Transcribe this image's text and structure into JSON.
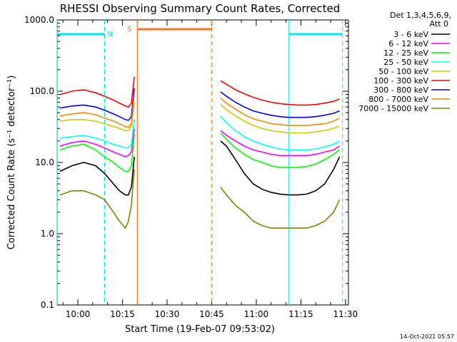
{
  "chart_data": {
    "type": "line",
    "title": "RHESSI Observing Summary Count Rates, Corrected",
    "xlabel": "Start Time (19-Feb-07 09:53:02)",
    "ylabel": "Corrected Count Rate (s⁻¹ detector⁻¹)",
    "yscale": "log",
    "ylim": [
      0.1,
      1000
    ],
    "xlim": [
      "09:53:02",
      "11:31:00"
    ],
    "x_ticks": [
      "10:00",
      "10:15",
      "10:30",
      "10:45",
      "11:00",
      "11:15",
      "11:30"
    ],
    "y_ticks": [
      "0.1",
      "1.0",
      "10.0",
      "100.0",
      "1000.0"
    ],
    "legend_title": "Det 1,3,4,5,6,9,",
    "legend_subtitle": "Att 0",
    "legend_position": "right",
    "footer_date": "14-Oct-2021 05:57",
    "night_label": "N",
    "saa_label": "S",
    "series": [
      {
        "name": "3 - 6 keV",
        "color": "#000000",
        "x": [
          "09:54",
          "09:58",
          "10:02",
          "10:06",
          "10:09",
          "10:12",
          "10:14",
          "10:16",
          "10:17",
          "10:18",
          "10:19"
        ],
        "values": [
          7.5,
          9.0,
          10.0,
          9.0,
          7.0,
          5.0,
          4.0,
          3.5,
          3.5,
          4.5,
          12
        ],
        "x2": [
          "10:48",
          "10:50",
          "10:53",
          "10:56",
          "10:59",
          "11:02",
          "11:05",
          "11:08",
          "11:11",
          "11:14",
          "11:17",
          "11:20",
          "11:23",
          "11:26",
          "11:28"
        ],
        "values2": [
          20,
          17,
          11,
          7.0,
          5.0,
          4.2,
          3.8,
          3.6,
          3.5,
          3.5,
          3.6,
          4.0,
          5.0,
          8.0,
          12
        ]
      },
      {
        "name": "6 - 12 keV",
        "color": "#ff00ff",
        "x": [
          "09:54",
          "09:58",
          "10:02",
          "10:06",
          "10:09",
          "10:12",
          "10:14",
          "10:16",
          "10:17",
          "10:18",
          "10:19"
        ],
        "values": [
          17,
          19,
          20,
          18,
          16,
          14,
          13,
          12,
          12.5,
          14,
          30
        ],
        "x2": [
          "10:48",
          "10:50",
          "10:53",
          "10:56",
          "10:59",
          "11:02",
          "11:05",
          "11:08",
          "11:11",
          "11:14",
          "11:17",
          "11:20",
          "11:23",
          "11:26",
          "11:28"
        ],
        "values2": [
          28,
          24,
          20,
          17,
          15,
          14,
          13,
          12.5,
          12.5,
          12.5,
          12.5,
          13,
          14,
          15,
          17
        ]
      },
      {
        "name": "12 - 25 keV",
        "color": "#00ff00",
        "x": [
          "09:54",
          "09:58",
          "10:02",
          "10:06",
          "10:09",
          "10:12",
          "10:14",
          "10:16",
          "10:17",
          "10:18",
          "10:19"
        ],
        "values": [
          15,
          17,
          18,
          15,
          12,
          10,
          8.5,
          7.5,
          7.5,
          9.0,
          25
        ],
        "x2": [
          "10:48",
          "10:50",
          "10:53",
          "10:56",
          "10:59",
          "11:02",
          "11:05",
          "11:08",
          "11:11",
          "11:14",
          "11:17",
          "11:20",
          "11:23",
          "11:26",
          "11:28"
        ],
        "values2": [
          26,
          21,
          16,
          13,
          11,
          10,
          9.0,
          8.5,
          8.5,
          8.5,
          8.8,
          9.5,
          11,
          13,
          15
        ]
      },
      {
        "name": "25 - 50 keV",
        "color": "#00ffff",
        "x": [
          "09:54",
          "09:58",
          "10:02",
          "10:06",
          "10:09",
          "10:12",
          "10:14",
          "10:16",
          "10:17",
          "10:18",
          "10:19"
        ],
        "values": [
          22,
          23,
          24,
          22,
          20,
          18,
          17,
          16,
          16,
          18,
          40
        ],
        "x2": [
          "10:48",
          "10:50",
          "10:53",
          "10:56",
          "10:59",
          "11:02",
          "11:05",
          "11:08",
          "11:11",
          "11:14",
          "11:17",
          "11:20",
          "11:23",
          "11:26",
          "11:28"
        ],
        "values2": [
          45,
          36,
          28,
          23,
          20,
          18,
          16.5,
          15.5,
          15,
          15,
          15,
          15.5,
          16.5,
          18,
          20
        ]
      },
      {
        "name": "50 - 100 keV",
        "color": "#cccc00",
        "x": [
          "09:54",
          "09:58",
          "10:02",
          "10:06",
          "10:09",
          "10:12",
          "10:14",
          "10:16",
          "10:17",
          "10:18",
          "10:19"
        ],
        "values": [
          38,
          40,
          40,
          38,
          35,
          32,
          30,
          28,
          28,
          32,
          70
        ],
        "x2": [
          "10:48",
          "10:50",
          "10:53",
          "10:56",
          "10:59",
          "11:02",
          "11:05",
          "11:08",
          "11:11",
          "11:14",
          "11:17",
          "11:20",
          "11:23",
          "11:26",
          "11:28"
        ],
        "values2": [
          65,
          55,
          45,
          38,
          33,
          30,
          28,
          27,
          26,
          26,
          26,
          27,
          28,
          30,
          33
        ]
      },
      {
        "name": "100 - 300 keV",
        "color": "#ff0000",
        "x": [
          "09:54",
          "09:58",
          "10:02",
          "10:06",
          "10:09",
          "10:12",
          "10:14",
          "10:16",
          "10:17",
          "10:18",
          "10:19"
        ],
        "values": [
          90,
          100,
          105,
          95,
          85,
          75,
          68,
          62,
          60,
          68,
          160
        ],
        "x2": [
          "10:48",
          "10:50",
          "10:53",
          "10:56",
          "10:59",
          "11:02",
          "11:05",
          "11:08",
          "11:11",
          "11:14",
          "11:17",
          "11:20",
          "11:23",
          "11:26",
          "11:28"
        ],
        "values2": [
          140,
          125,
          105,
          92,
          82,
          75,
          70,
          67,
          65,
          64,
          64,
          65,
          68,
          72,
          78
        ]
      },
      {
        "name": "300 - 800 keV",
        "color": "#0000ff",
        "x": [
          "09:54",
          "09:58",
          "10:02",
          "10:06",
          "10:09",
          "10:12",
          "10:14",
          "10:16",
          "10:17",
          "10:18",
          "10:19"
        ],
        "values": [
          58,
          62,
          64,
          60,
          54,
          48,
          44,
          40,
          39,
          44,
          110
        ],
        "x2": [
          "10:48",
          "10:50",
          "10:53",
          "10:56",
          "10:59",
          "11:02",
          "11:05",
          "11:08",
          "11:11",
          "11:14",
          "11:17",
          "11:20",
          "11:23",
          "11:26",
          "11:28"
        ],
        "values2": [
          98,
          85,
          70,
          60,
          53,
          49,
          46,
          44,
          43,
          43,
          43,
          44,
          46,
          49,
          53
        ]
      },
      {
        "name": "800 - 7000 keV",
        "color": "#ff8800",
        "x": [
          "09:54",
          "09:58",
          "10:02",
          "10:06",
          "10:09",
          "10:12",
          "10:14",
          "10:16",
          "10:17",
          "10:18",
          "10:19"
        ],
        "values": [
          45,
          48,
          50,
          47,
          42,
          38,
          35,
          32,
          31,
          35,
          90
        ],
        "x2": [
          "10:48",
          "10:50",
          "10:53",
          "10:56",
          "10:59",
          "11:02",
          "11:05",
          "11:08",
          "11:11",
          "11:14",
          "11:17",
          "11:20",
          "11:23",
          "11:26",
          "11:28"
        ],
        "values2": [
          80,
          68,
          56,
          47,
          41,
          38,
          35,
          34,
          33,
          33,
          33,
          34,
          35,
          38,
          42
        ]
      },
      {
        "name": "7000 - 15000 keV",
        "color": "#808000",
        "x": [
          "09:54",
          "09:58",
          "10:02",
          "10:06",
          "10:09",
          "10:12",
          "10:14",
          "10:16",
          "10:17",
          "10:18",
          "10:19"
        ],
        "values": [
          3.5,
          4.0,
          4.0,
          3.5,
          3.0,
          2.0,
          1.5,
          1.2,
          1.5,
          2.5,
          8
        ],
        "x2": [
          "10:48",
          "10:50",
          "10:53",
          "10:56",
          "10:59",
          "11:02",
          "11:05",
          "11:08",
          "11:11",
          "11:14",
          "11:17",
          "11:20",
          "11:23",
          "11:26",
          "11:28"
        ],
        "values2": [
          4.5,
          3.5,
          2.5,
          2.0,
          1.5,
          1.3,
          1.2,
          1.2,
          1.2,
          1.2,
          1.2,
          1.3,
          1.5,
          2.0,
          3.0
        ]
      }
    ],
    "markers": {
      "night_intervals": [
        [
          "09:53",
          "10:09"
        ],
        [
          "11:11",
          "11:29"
        ]
      ],
      "saa_interval": [
        "10:20",
        "10:45"
      ],
      "cyan_lines": [
        "09:53",
        "11:11"
      ],
      "cyan_dashed": [
        "10:09",
        "11:29"
      ],
      "orange_line": "10:20",
      "orange_dashed": "10:45",
      "colors": {
        "night": "#00e5ee",
        "saa": "#ee7722"
      }
    }
  }
}
